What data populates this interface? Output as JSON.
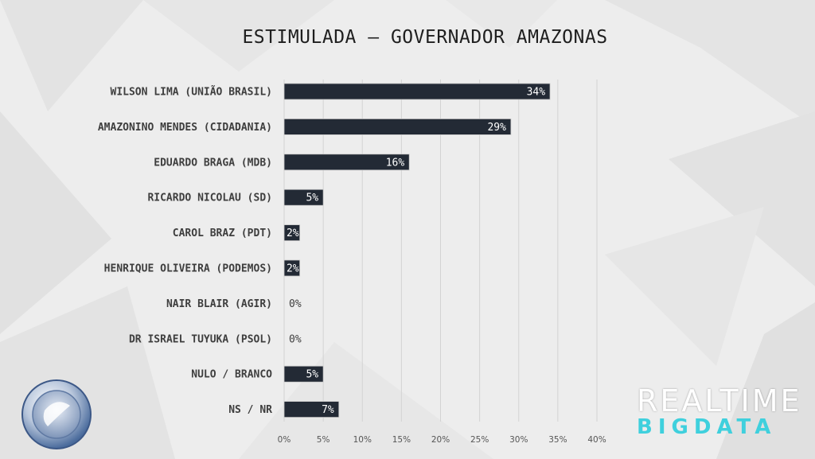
{
  "chart_data": {
    "type": "bar",
    "orientation": "horizontal",
    "title": "ESTIMULADA – GOVERNADOR AMAZONAS",
    "categories": [
      "WILSON LIMA (UNIÃO BRASIL)",
      "AMAZONINO MENDES (CIDADANIA)",
      "EDUARDO BRAGA (MDB)",
      "RICARDO NICOLAU (SD)",
      "CAROL BRAZ (PDT)",
      "HENRIQUE OLIVEIRA (PODEMOS)",
      "NAIR BLAIR (AGIR)",
      "DR ISRAEL TUYUKA (PSOL)",
      "NULO / BRANCO",
      "NS / NR"
    ],
    "values": [
      34,
      29,
      16,
      5,
      2,
      2,
      0,
      0,
      5,
      7
    ],
    "value_labels": [
      "34%",
      "29%",
      "16%",
      "5%",
      "2%",
      "2%",
      "0%",
      "0%",
      "5%",
      "7%"
    ],
    "xlim": [
      0,
      40
    ],
    "x_ticks": [
      "0%",
      "5%",
      "10%",
      "15%",
      "20%",
      "25%",
      "30%",
      "35%",
      "40%"
    ],
    "grid": true,
    "bar_color": "#232a35"
  },
  "branding": {
    "line1": "REALTIME",
    "line2": "BIGDATA",
    "accent_color": "#3fd0dd",
    "logo_icon": "record-tv-logo"
  }
}
